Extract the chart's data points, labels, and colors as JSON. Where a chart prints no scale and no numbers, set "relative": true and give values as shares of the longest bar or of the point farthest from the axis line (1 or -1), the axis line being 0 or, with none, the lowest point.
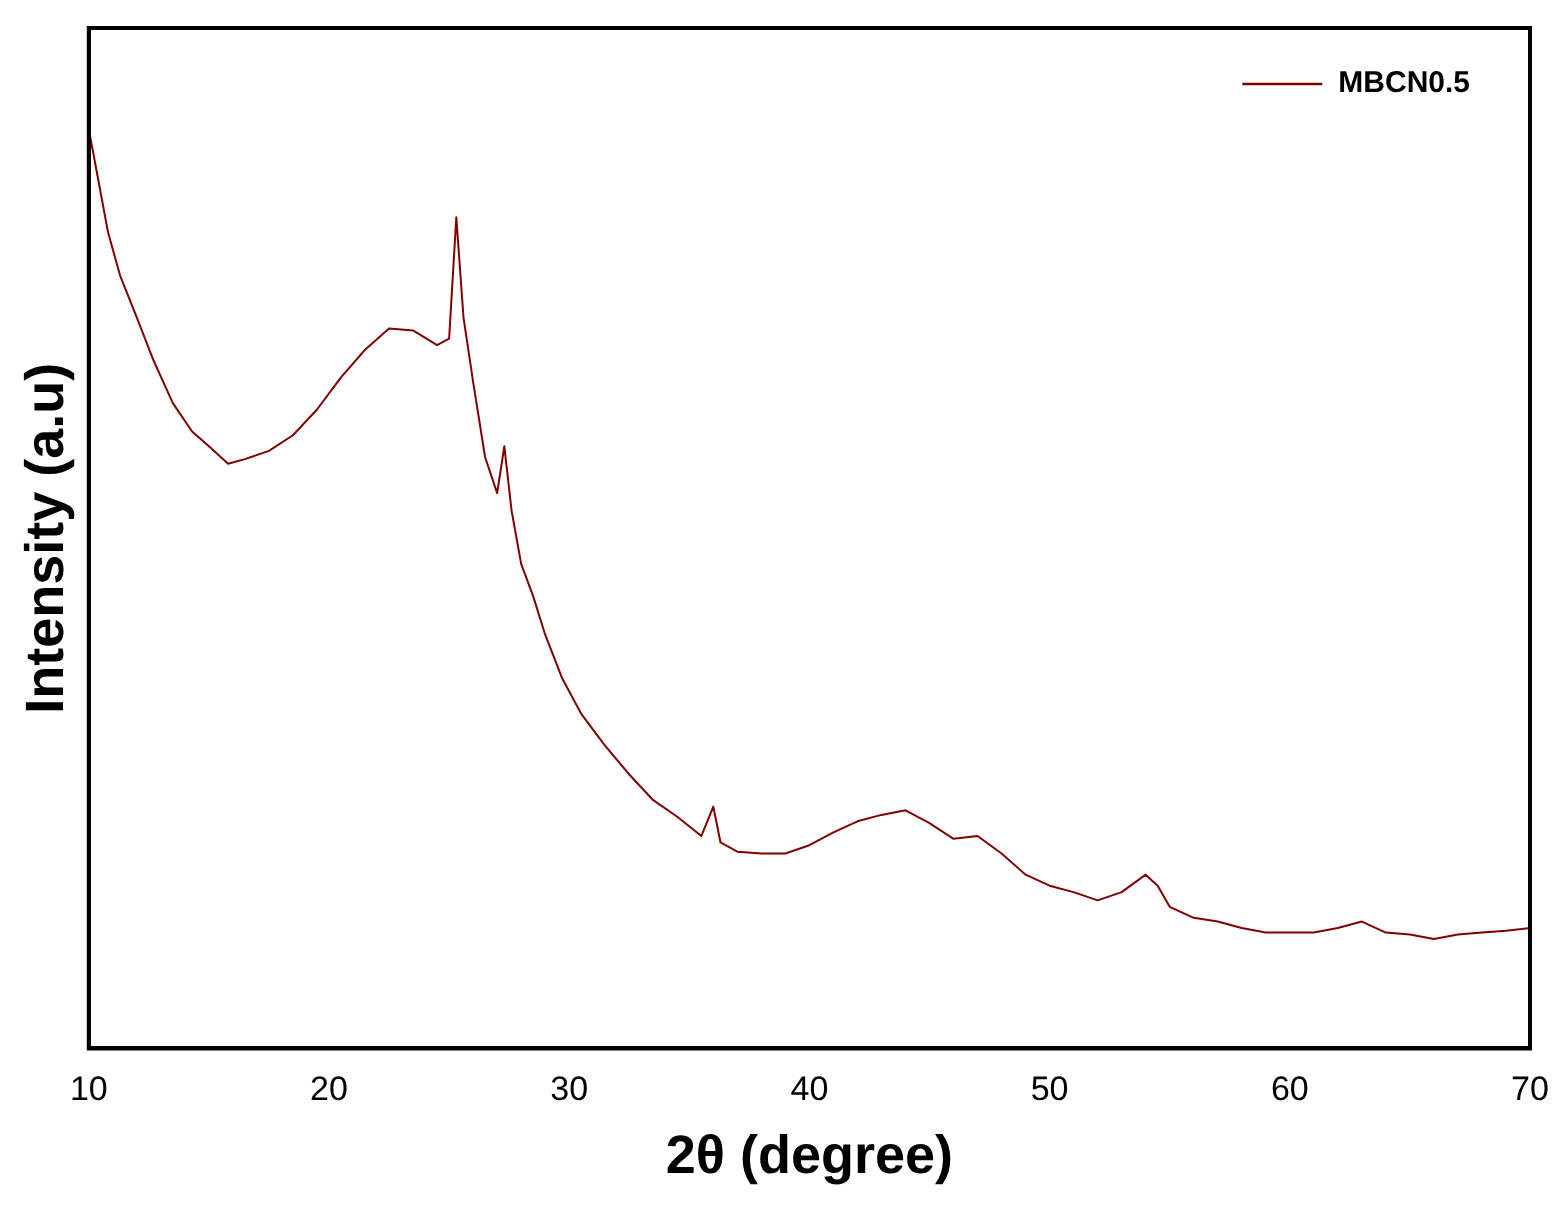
{
  "chart_data": {
    "type": "line",
    "xlabel": "2θ (degree)",
    "ylabel": "Intensity (a.u)",
    "relative": true,
    "xlim": [
      10,
      70
    ],
    "xticks": [
      10,
      20,
      30,
      40,
      50,
      60,
      70
    ],
    "legend": "top right",
    "marker": "none",
    "grid": false,
    "series": [
      {
        "name": "MBCN0.5",
        "color": "#800000",
        "x": [
          10,
          10.3,
          10.8,
          11.3,
          12,
          12.7,
          13.5,
          14.3,
          15,
          15.8,
          16.5,
          17.5,
          18.5,
          19.5,
          20.5,
          21.5,
          22.5,
          23.5,
          24.5,
          25,
          25.3,
          25.6,
          26,
          26.5,
          27,
          27.3,
          27.6,
          28,
          28.5,
          29,
          29.7,
          30.5,
          31.5,
          32.5,
          33.5,
          34.5,
          35.5,
          36,
          36.3,
          37,
          38,
          39,
          40,
          41,
          42,
          43,
          44,
          45,
          46,
          47,
          48,
          49,
          50,
          51,
          52,
          53,
          54,
          54.5,
          55,
          56,
          57,
          58,
          59,
          60,
          61,
          62,
          63,
          64,
          65,
          66,
          67,
          68,
          69,
          70
        ],
        "values": [
          1,
          0.958,
          0.888,
          0.841,
          0.795,
          0.748,
          0.702,
          0.671,
          0.655,
          0.636,
          0.641,
          0.65,
          0.667,
          0.695,
          0.73,
          0.76,
          0.783,
          0.781,
          0.765,
          0.772,
          0.904,
          0.795,
          0.725,
          0.643,
          0.604,
          0.655,
          0.585,
          0.527,
          0.492,
          0.45,
          0.403,
          0.364,
          0.329,
          0.298,
          0.27,
          0.252,
          0.231,
          0.263,
          0.224,
          0.214,
          0.212,
          0.212,
          0.221,
          0.235,
          0.247,
          0.254,
          0.259,
          0.245,
          0.228,
          0.231,
          0.212,
          0.189,
          0.177,
          0.17,
          0.161,
          0.17,
          0.189,
          0.177,
          0.154,
          0.142,
          0.138,
          0.131,
          0.126,
          0.126,
          0.126,
          0.131,
          0.138,
          0.126,
          0.124,
          0.119,
          0.124,
          0.126,
          0.128,
          0.131
        ]
      }
    ]
  }
}
